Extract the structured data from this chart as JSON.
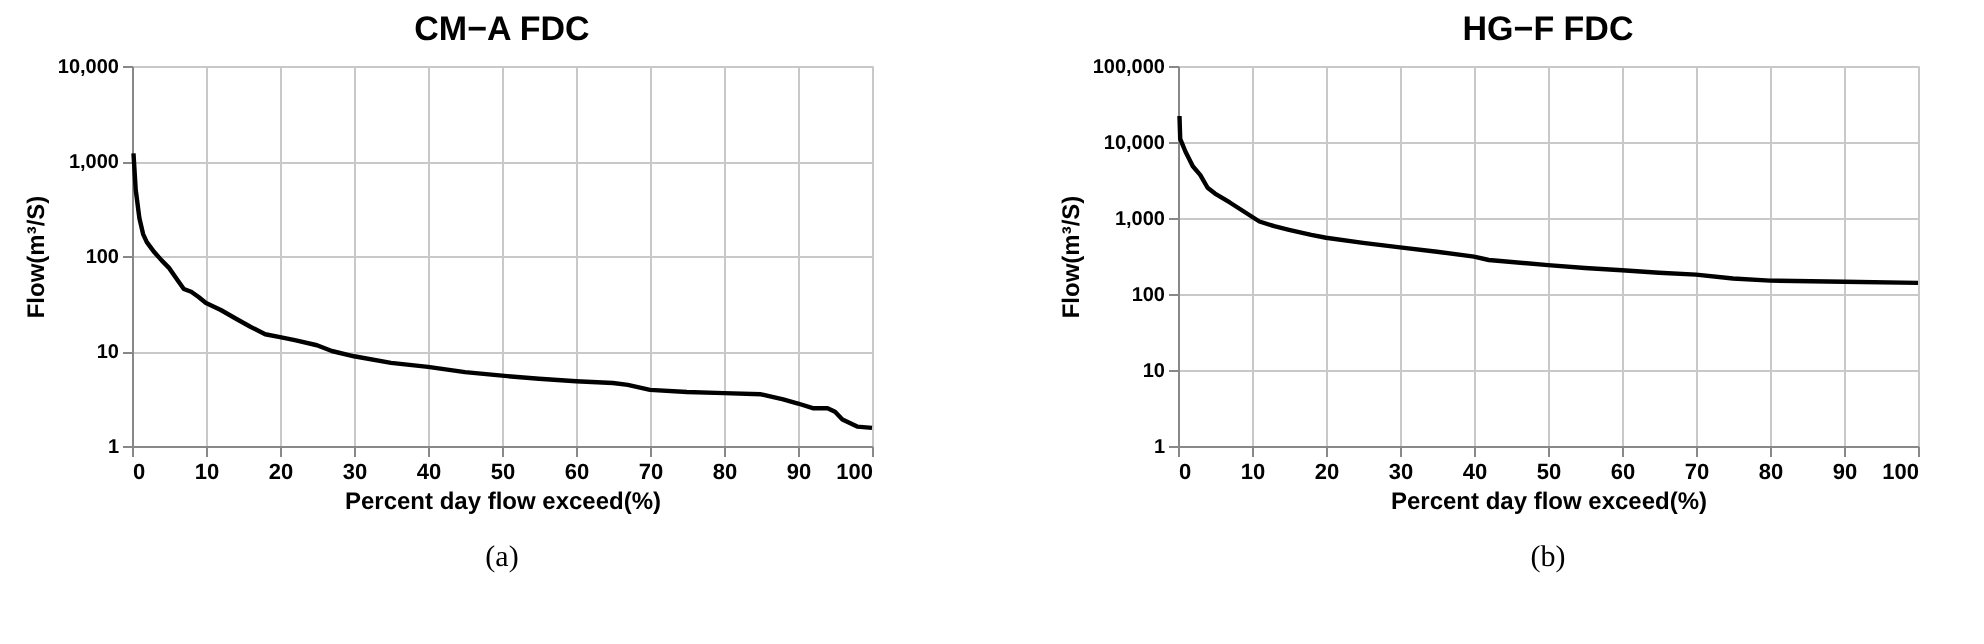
{
  "chart_data": [
    {
      "type": "line",
      "title": "CM−A  FDC",
      "xlabel": "Percent day flow exceed(%)",
      "ylabel": "Flow(m³/S)",
      "annotations": [
        "(a)"
      ],
      "log": "y",
      "grid": true,
      "legend": false,
      "marker": "none",
      "line_style": "solid",
      "xlim": [
        0,
        100
      ],
      "xticks": [
        0,
        10,
        20,
        30,
        40,
        50,
        60,
        70,
        80,
        90,
        100
      ],
      "ylim": [
        1,
        10000
      ],
      "yticks": [
        1,
        10,
        100,
        {
          "value": 1000,
          "label": "1,000"
        },
        {
          "value": 10000,
          "label": "10,000"
        }
      ],
      "series": [
        {
          "color": "#000000",
          "x": [
            0.2,
            0.5,
            1,
            1.5,
            2,
            3,
            4,
            5,
            6,
            7,
            8,
            9,
            10,
            12,
            14,
            16,
            18,
            20,
            22,
            25,
            27,
            30,
            35,
            40,
            45,
            50,
            55,
            60,
            65,
            67,
            70,
            75,
            80,
            85,
            88,
            90,
            92,
            94,
            95,
            96,
            98,
            100
          ],
          "values": [
            1200,
            500,
            250,
            170,
            140,
            110,
            90,
            75,
            58,
            45,
            42,
            37,
            32,
            27,
            22,
            18,
            15,
            14,
            13,
            11.5,
            10,
            8.8,
            7.5,
            6.8,
            6,
            5.5,
            5.1,
            4.8,
            4.6,
            4.4,
            3.9,
            3.7,
            3.6,
            3.5,
            3.1,
            2.8,
            2.5,
            2.5,
            2.3,
            1.9,
            1.6,
            1.55
          ]
        }
      ]
    },
    {
      "type": "line",
      "title": "HG−F  FDC",
      "xlabel": "Percent day flow exceed(%)",
      "ylabel": "Flow(m³/S)",
      "annotations": [
        "(b)"
      ],
      "log": "y",
      "grid": true,
      "legend": false,
      "marker": "none",
      "line_style": "solid",
      "xlim": [
        0,
        100
      ],
      "xticks": [
        0,
        10,
        20,
        30,
        40,
        50,
        60,
        70,
        80,
        90,
        100
      ],
      "ylim": [
        1,
        100000
      ],
      "yticks": [
        1,
        10,
        100,
        {
          "value": 1000,
          "label": "1,000"
        },
        {
          "value": 10000,
          "label": "10,000"
        },
        {
          "value": 100000,
          "label": "100,000"
        }
      ],
      "series": [
        {
          "color": "#000000",
          "x": [
            0.2,
            0.3,
            1,
            2,
            3,
            4,
            5,
            7,
            9,
            11,
            13,
            15,
            18,
            20,
            25,
            30,
            35,
            40,
            42,
            50,
            55,
            60,
            65,
            70,
            75,
            80,
            90,
            100
          ],
          "values": [
            22000,
            11000,
            7500,
            4800,
            3700,
            2500,
            2100,
            1600,
            1200,
            900,
            780,
            700,
            600,
            550,
            470,
            410,
            360,
            310,
            280,
            240,
            220,
            205,
            190,
            180,
            160,
            150,
            145,
            140
          ]
        }
      ]
    }
  ]
}
